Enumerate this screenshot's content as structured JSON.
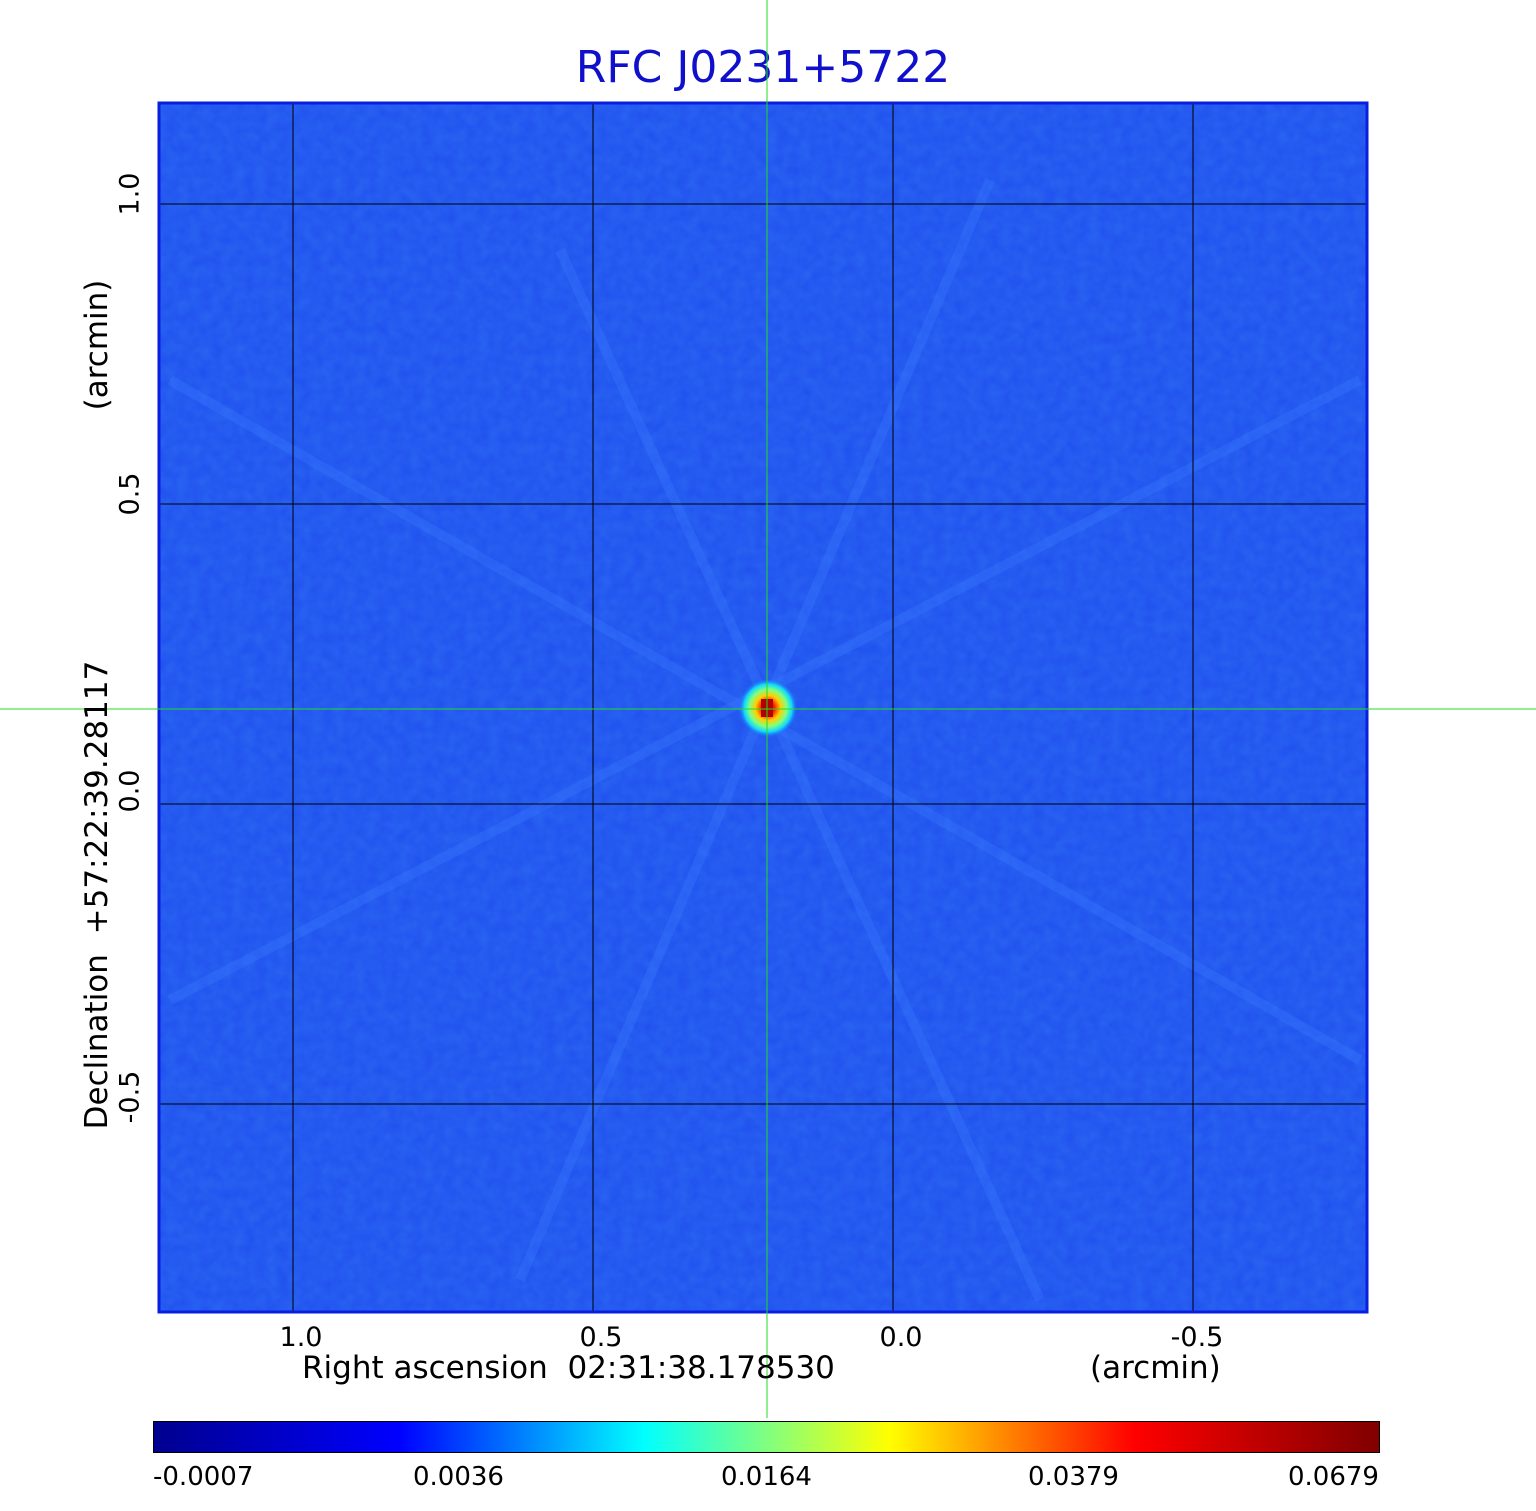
{
  "title": "RFC J0231+5722",
  "x_axis": {
    "label": "Right ascension  02:31:38.178530",
    "unit": "(arcmin)",
    "ticks": [
      "1.0",
      "0.5",
      "0.0",
      "-0.5"
    ]
  },
  "y_axis": {
    "label": "Declination  +57:22:39.28117",
    "unit": "(arcmin)",
    "ticks": [
      "1.0",
      "0.5",
      "0.0",
      "-0.5"
    ]
  },
  "colorbar": {
    "labels": [
      "-0.0007",
      "0.0036",
      "0.0164",
      "0.0379",
      "0.0679"
    ],
    "colors": [
      "#00008f",
      "#0000ff",
      "#00ffff",
      "#ffff00",
      "#ff0000",
      "#800000"
    ]
  },
  "colors": {
    "background_field": "#1f4fee",
    "frame": "#0a1ee0",
    "crosshair": "#22dd22",
    "grid": "#000000",
    "title": "#1010cc"
  }
}
